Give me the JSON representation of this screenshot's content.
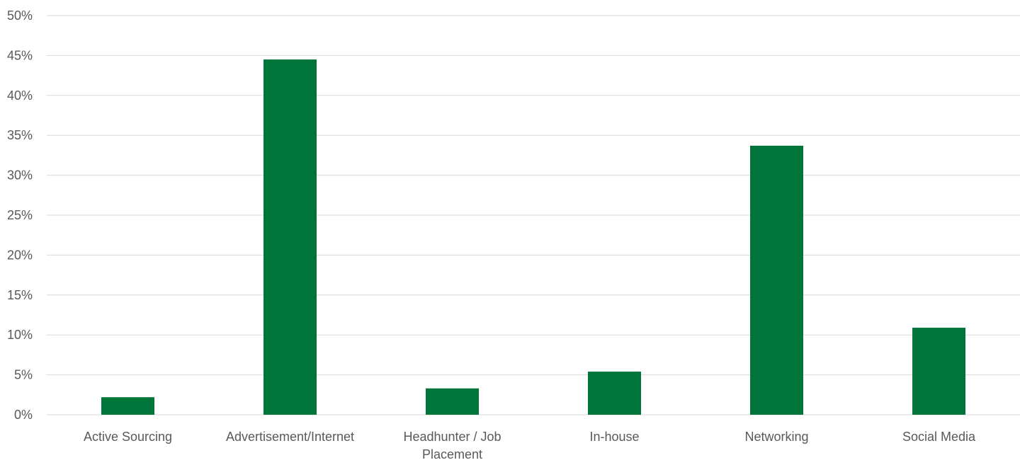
{
  "chart_data": {
    "type": "bar",
    "categories": [
      "Active Sourcing",
      "Advertisement/Internet",
      "Headhunter / Job Placement",
      "In-house",
      "Networking",
      "Social Media"
    ],
    "category_label_lines": [
      [
        "Active Sourcing"
      ],
      [
        "Advertisement/Internet"
      ],
      [
        "Headhunter / Job",
        "Placement"
      ],
      [
        "In-house"
      ],
      [
        "Networking"
      ],
      [
        "Social Media"
      ]
    ],
    "values": [
      2.2,
      44.5,
      3.3,
      5.4,
      33.7,
      10.9
    ],
    "ylim": [
      0,
      50
    ],
    "yticks": [
      0,
      5,
      10,
      15,
      20,
      25,
      30,
      35,
      40,
      45,
      50
    ],
    "ytick_labels": [
      "0%",
      "5%",
      "10%",
      "15%",
      "20%",
      "25%",
      "30%",
      "35%",
      "40%",
      "45%",
      "50%"
    ],
    "title": "",
    "xlabel": "",
    "ylabel": "",
    "grid": true,
    "bar_color": "#00753a"
  }
}
